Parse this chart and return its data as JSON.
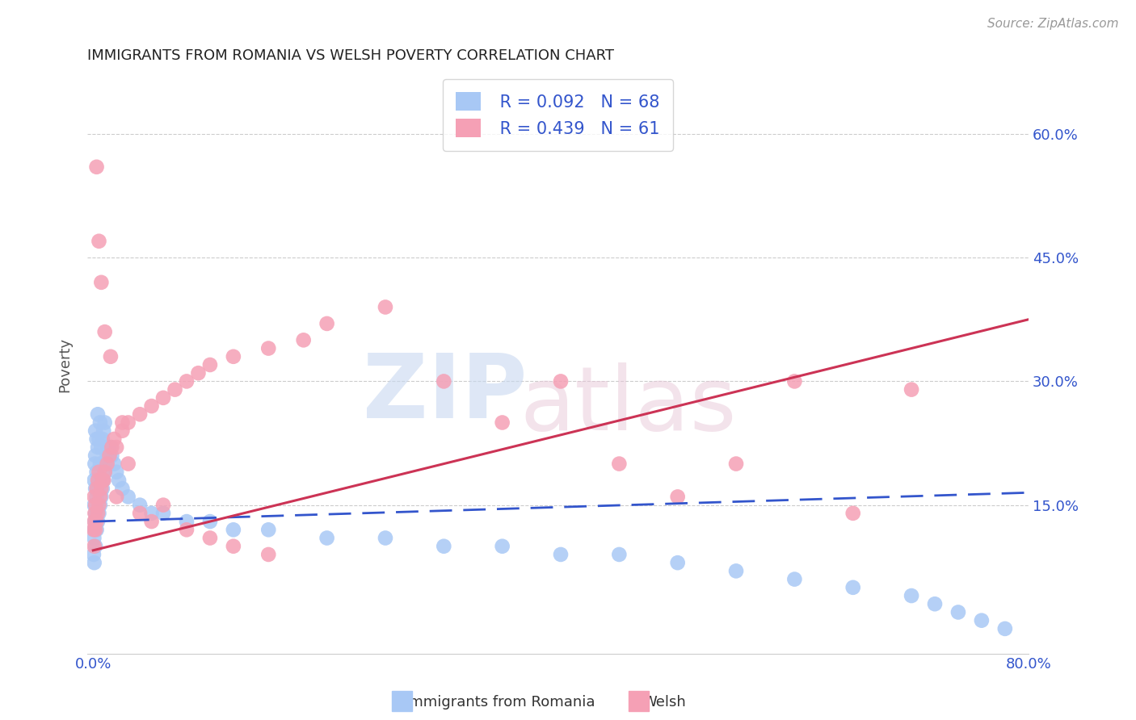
{
  "title": "IMMIGRANTS FROM ROMANIA VS WELSH POVERTY CORRELATION CHART",
  "source": "Source: ZipAtlas.com",
  "ylabel": "Poverty",
  "blue_color": "#a8c8f5",
  "pink_color": "#f5a0b5",
  "blue_line_color": "#3355cc",
  "pink_line_color": "#cc3355",
  "legend_text_color": "#3355cc",
  "legend_R1": "R = 0.092",
  "legend_N1": "N = 68",
  "legend_R2": "R = 0.439",
  "legend_N2": "N = 61",
  "blue_scatter_x": [
    0.0005,
    0.0008,
    0.001,
    0.001,
    0.001,
    0.001,
    0.0015,
    0.0015,
    0.002,
    0.002,
    0.002,
    0.002,
    0.002,
    0.003,
    0.003,
    0.003,
    0.003,
    0.004,
    0.004,
    0.004,
    0.004,
    0.005,
    0.005,
    0.005,
    0.006,
    0.006,
    0.006,
    0.007,
    0.007,
    0.008,
    0.008,
    0.009,
    0.009,
    0.01,
    0.01,
    0.011,
    0.012,
    0.013,
    0.014,
    0.015,
    0.016,
    0.018,
    0.02,
    0.022,
    0.025,
    0.03,
    0.04,
    0.05,
    0.06,
    0.08,
    0.1,
    0.12,
    0.15,
    0.2,
    0.25,
    0.3,
    0.35,
    0.4,
    0.45,
    0.5,
    0.55,
    0.6,
    0.65,
    0.7,
    0.72,
    0.74,
    0.76,
    0.78
  ],
  "blue_scatter_y": [
    0.09,
    0.11,
    0.08,
    0.12,
    0.15,
    0.18,
    0.13,
    0.2,
    0.1,
    0.14,
    0.17,
    0.21,
    0.24,
    0.12,
    0.16,
    0.19,
    0.23,
    0.13,
    0.17,
    0.22,
    0.26,
    0.14,
    0.18,
    0.23,
    0.15,
    0.2,
    0.25,
    0.16,
    0.22,
    0.17,
    0.23,
    0.18,
    0.24,
    0.19,
    0.25,
    0.2,
    0.21,
    0.22,
    0.21,
    0.22,
    0.21,
    0.2,
    0.19,
    0.18,
    0.17,
    0.16,
    0.15,
    0.14,
    0.14,
    0.13,
    0.13,
    0.12,
    0.12,
    0.11,
    0.11,
    0.1,
    0.1,
    0.09,
    0.09,
    0.08,
    0.07,
    0.06,
    0.05,
    0.04,
    0.03,
    0.02,
    0.01,
    0.0
  ],
  "pink_scatter_x": [
    0.0005,
    0.001,
    0.001,
    0.001,
    0.0015,
    0.002,
    0.002,
    0.003,
    0.003,
    0.004,
    0.004,
    0.005,
    0.005,
    0.006,
    0.007,
    0.008,
    0.009,
    0.01,
    0.012,
    0.014,
    0.016,
    0.018,
    0.02,
    0.025,
    0.03,
    0.04,
    0.05,
    0.06,
    0.07,
    0.08,
    0.09,
    0.1,
    0.12,
    0.15,
    0.18,
    0.2,
    0.25,
    0.3,
    0.35,
    0.4,
    0.45,
    0.5,
    0.55,
    0.6,
    0.65,
    0.7,
    0.003,
    0.005,
    0.007,
    0.01,
    0.015,
    0.02,
    0.025,
    0.03,
    0.04,
    0.05,
    0.06,
    0.08,
    0.1,
    0.12,
    0.15
  ],
  "pink_scatter_y": [
    0.12,
    0.1,
    0.13,
    0.16,
    0.14,
    0.12,
    0.15,
    0.13,
    0.17,
    0.14,
    0.18,
    0.15,
    0.19,
    0.16,
    0.17,
    0.18,
    0.18,
    0.19,
    0.2,
    0.21,
    0.22,
    0.23,
    0.22,
    0.24,
    0.25,
    0.26,
    0.27,
    0.28,
    0.29,
    0.3,
    0.31,
    0.32,
    0.33,
    0.34,
    0.35,
    0.37,
    0.39,
    0.3,
    0.25,
    0.3,
    0.2,
    0.16,
    0.2,
    0.3,
    0.14,
    0.29,
    0.56,
    0.47,
    0.42,
    0.36,
    0.33,
    0.16,
    0.25,
    0.2,
    0.14,
    0.13,
    0.15,
    0.12,
    0.11,
    0.1,
    0.09
  ],
  "blue_line_x": [
    0.0,
    0.8
  ],
  "blue_line_y": [
    0.13,
    0.165
  ],
  "pink_line_x": [
    0.0,
    0.8
  ],
  "pink_line_y": [
    0.095,
    0.375
  ],
  "xlim": [
    -0.005,
    0.8
  ],
  "ylim": [
    -0.03,
    0.67
  ],
  "xticks": [
    0.0,
    0.2,
    0.4,
    0.6,
    0.8
  ],
  "xticklabels": [
    "0.0%",
    "",
    "",
    "",
    "80.0%"
  ],
  "yticks_right": [
    0.15,
    0.3,
    0.45,
    0.6
  ],
  "yticklabels_right": [
    "15.0%",
    "30.0%",
    "45.0%",
    "60.0%"
  ],
  "grid_yticks": [
    0.15,
    0.3,
    0.45,
    0.6
  ]
}
